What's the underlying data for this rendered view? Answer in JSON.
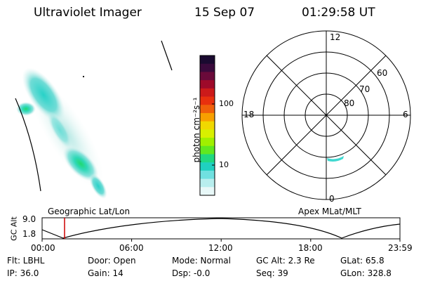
{
  "header": {
    "instrument": "Ultraviolet Imager",
    "date": "15 Sep 07",
    "time": "01:29:58 UT"
  },
  "colorbar": {
    "unit_label": "photon cm⁻²s⁻¹",
    "ticks": [
      "100",
      "10"
    ],
    "colors": [
      "#1a0a30",
      "#3a0a3c",
      "#6a0a3a",
      "#9e0a2a",
      "#cc1a1a",
      "#e8300e",
      "#f0600a",
      "#f8a000",
      "#f0d800",
      "#d8f000",
      "#a0f000",
      "#60e820",
      "#20d880",
      "#20d0c0",
      "#70e0e0",
      "#b8eeee",
      "#e8f8f8"
    ]
  },
  "polar_plot": {
    "mlt_labels": {
      "top": "12",
      "left": "18",
      "right": "6",
      "bottom": "0"
    },
    "lat_labels": [
      "60",
      "70",
      "80"
    ]
  },
  "timeline": {
    "y_axis_label": "GC Alt",
    "y_ticks": [
      "9.0",
      "1.8"
    ],
    "left_title": "Geographic Lat/Lon",
    "right_title": "Apex MLat/MLT",
    "x_ticks": [
      "00:00",
      "06:00",
      "12:00",
      "18:00",
      "23:59"
    ],
    "marker_color": "#cc0000"
  },
  "info": {
    "flt": "Flt: LBHL",
    "door": "Door: Open",
    "mode": "Mode: Normal",
    "gc_alt": "GC Alt: 2.3 Re",
    "glat": "GLat:  65.8",
    "ip": "IP: 36.0",
    "gain": "Gain: 14",
    "dsp": "Dsp:   -0.0",
    "seq": "Seq: 39",
    "glon": "GLon: 328.8"
  }
}
